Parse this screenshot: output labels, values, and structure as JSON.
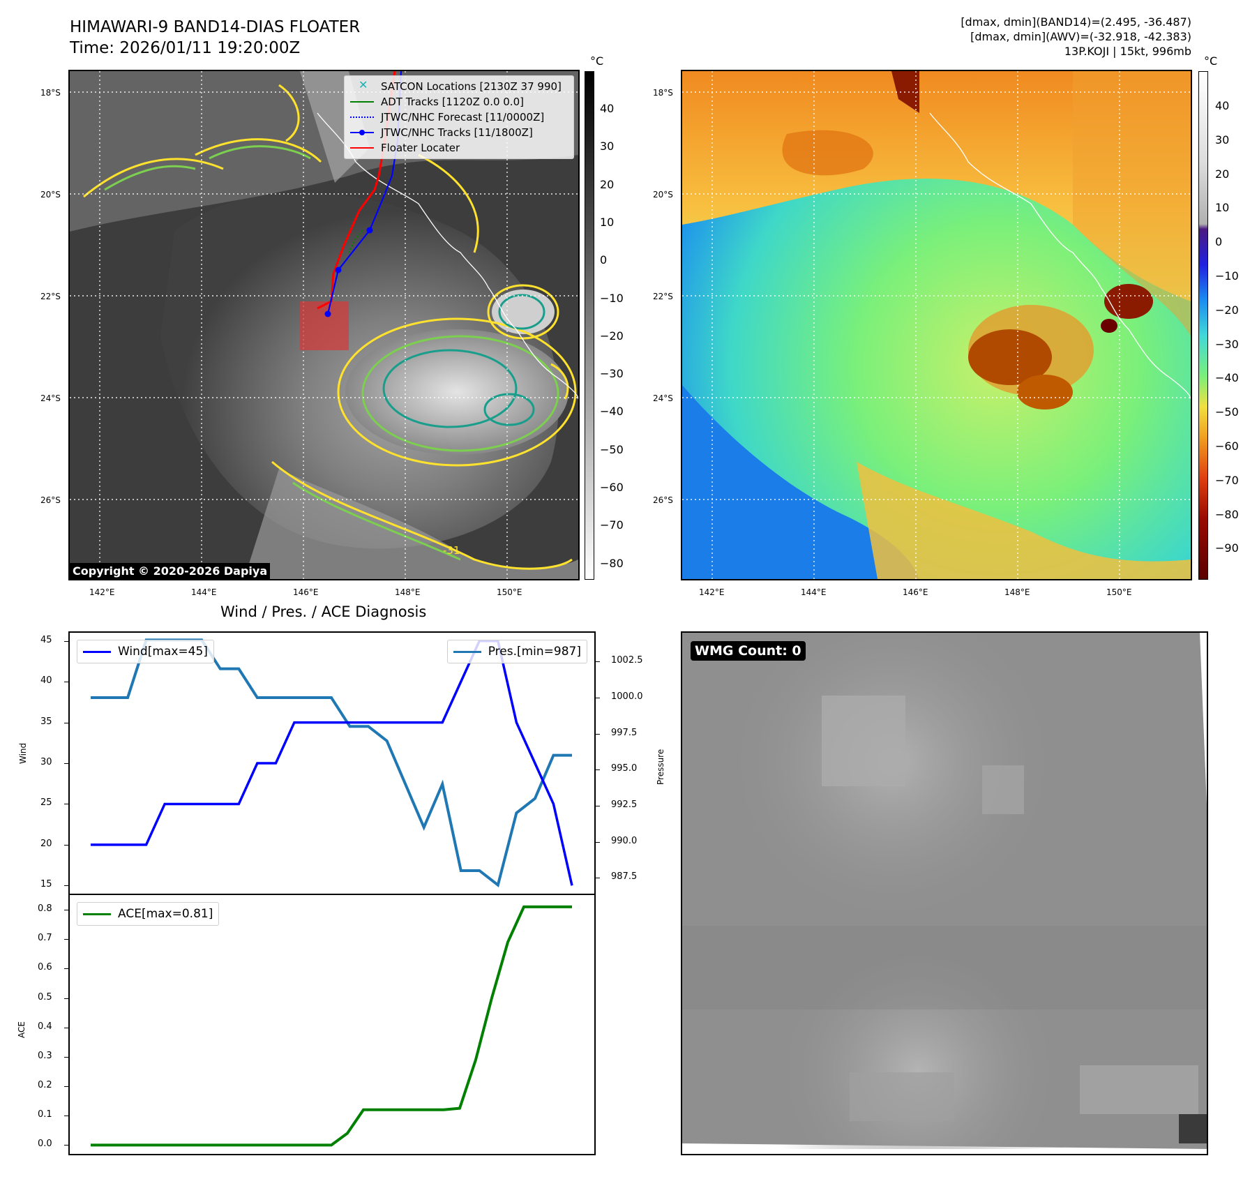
{
  "header": {
    "title_line1": "HIMAWARI-9 BAND14-DIAS FLOATER",
    "title_line2": "Time: 2026/01/11 19:20:00Z",
    "info_line1": "[dmax, dmin](BAND14)=(2.495, -36.487)",
    "info_line2": "[dmax, dmin](AWV)=(-32.918, -42.383)",
    "info_line3": "13P.KOJI | 15kt, 996mb"
  },
  "map_axes": {
    "lat_labels": [
      "18°S",
      "20°S",
      "22°S",
      "24°S",
      "26°S"
    ],
    "lon_labels": [
      "142°E",
      "144°E",
      "146°E",
      "148°E",
      "150°E"
    ]
  },
  "left_map": {
    "legend": [
      {
        "label": "SATCON Locations [2130Z 37 990]",
        "color": "#17b3b3"
      },
      {
        "label": "ADT Tracks [1120Z 0.0 0.0]",
        "color": "#008000"
      },
      {
        "label": "JTWC/NHC Forecast [11/0000Z]",
        "color": "#0000ff"
      },
      {
        "label": "JTWC/NHC Tracks [11/1800Z]",
        "color": "#0000ff"
      },
      {
        "label": "Floater Locater",
        "color": "#ff0000"
      }
    ],
    "copyright": "Copyright © 2020-2026 Dapiya",
    "contour_label": "-31",
    "colorbar": {
      "unit": "°C",
      "ticks": [
        "40",
        "30",
        "20",
        "10",
        "0",
        "−10",
        "−20",
        "−30",
        "−40",
        "−50",
        "−60",
        "−70",
        "−80"
      ]
    }
  },
  "right_map": {
    "colorbar": {
      "unit": "°C",
      "ticks": [
        "40",
        "30",
        "20",
        "10",
        "0",
        "−10",
        "−20",
        "−30",
        "−40",
        "−50",
        "−60",
        "−70",
        "−80",
        "−90"
      ]
    }
  },
  "wmg_panel": {
    "label": "WMG Count: 0"
  },
  "colors": {
    "wind": "#0000ff",
    "pressure": "#1f77b4",
    "ace": "#008000",
    "floater": "#ff0000",
    "contour_yellow": "#ffe22e",
    "contour_green": "#7ccf4f",
    "contour_teal": "#1a9e8c"
  },
  "chart_data": [
    {
      "type": "line",
      "title": "Wind / Pres. / ACE Diagnosis",
      "ylabel": "Wind",
      "ylabel_right": "Pressure",
      "ylim": [
        14,
        46
      ],
      "ylim_right": [
        986.4,
        1004.5
      ],
      "yticks": [
        "45",
        "40",
        "35",
        "30",
        "25",
        "20",
        "15"
      ],
      "yticks_right": [
        "1002.5",
        "1000.0",
        "997.5",
        "995.0",
        "992.5",
        "990.0",
        "987.5"
      ],
      "series": [
        {
          "name": "Wind[max=45]",
          "axis": "left",
          "values": [
            20,
            20,
            20,
            20,
            25,
            25,
            25,
            25,
            25,
            30,
            30,
            35,
            35,
            35,
            35,
            35,
            35,
            35,
            35,
            35,
            40,
            45,
            45,
            35,
            30,
            25,
            15
          ]
        },
        {
          "name": "Pres.[min=987]",
          "axis": "right",
          "values": [
            1000,
            1000,
            1000,
            1004,
            1004,
            1004,
            1004,
            1002,
            1002,
            1000,
            1000,
            1000,
            1000,
            1000,
            998,
            998,
            997,
            994,
            991,
            994,
            988,
            988,
            987,
            992,
            993,
            996,
            996
          ]
        }
      ]
    },
    {
      "type": "line",
      "ylabel": "ACE",
      "ylim": [
        -0.03,
        0.85
      ],
      "yticks": [
        "0.8",
        "0.7",
        "0.6",
        "0.5",
        "0.4",
        "0.3",
        "0.2",
        "0.1",
        "0.0"
      ],
      "series": [
        {
          "name": "ACE[max=0.81]",
          "values": [
            0,
            0,
            0,
            0,
            0,
            0,
            0,
            0,
            0,
            0,
            0,
            0,
            0,
            0,
            0,
            0.0,
            0.04,
            0.12,
            0.12,
            0.12,
            0.12,
            0.12,
            0.12,
            0.125,
            0.29,
            0.5,
            0.69,
            0.81,
            0.81,
            0.81,
            0.81
          ]
        }
      ]
    }
  ]
}
